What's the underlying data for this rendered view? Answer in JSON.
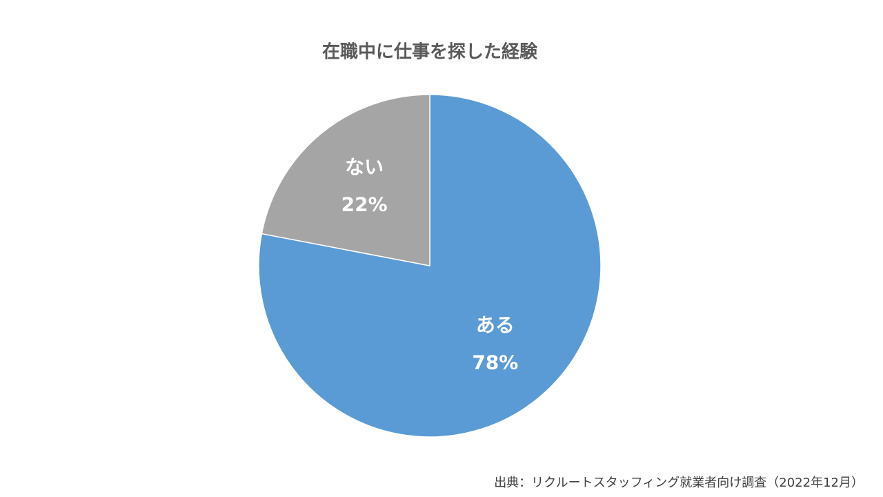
{
  "chart_data": {
    "type": "pie",
    "title": "在職中に仕事を探した経験",
    "categories": [
      "ある",
      "ない"
    ],
    "values": [
      78,
      22
    ],
    "value_labels": [
      "78%",
      "22%"
    ],
    "colors": [
      "#5b9bd5",
      "#a5a5a5"
    ],
    "source": "出典：リクルートスタッフィング就業者向け調査（2022年12月）"
  }
}
